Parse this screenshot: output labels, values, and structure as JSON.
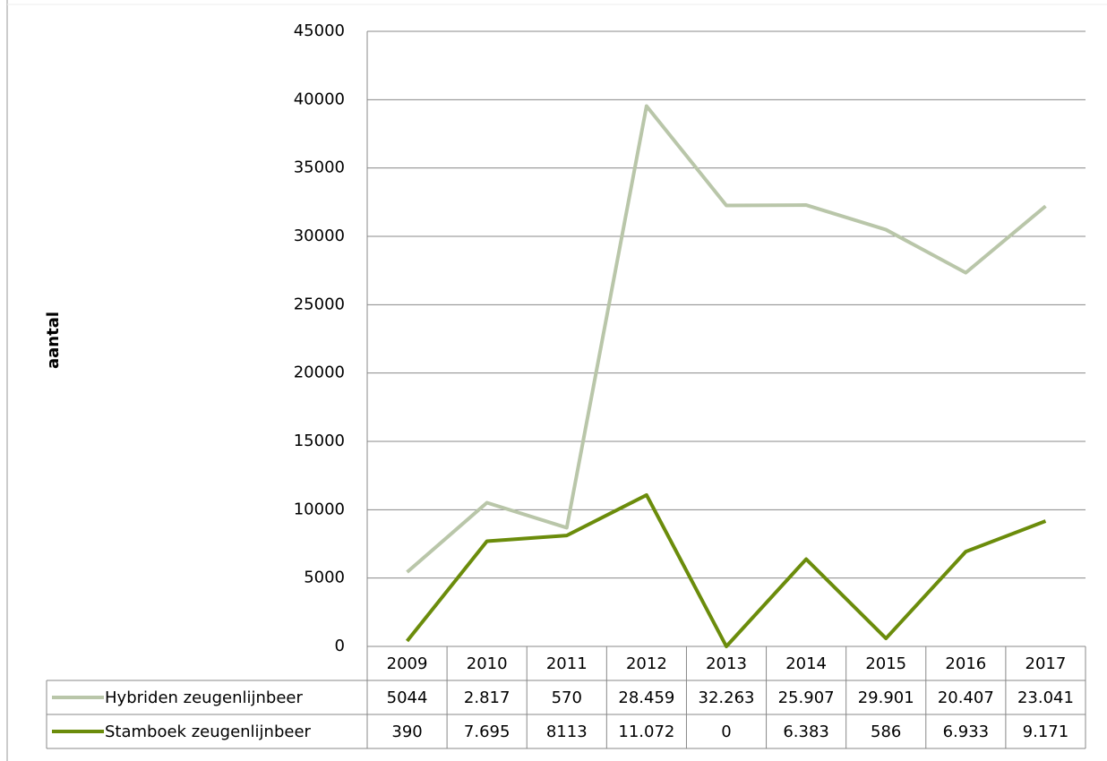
{
  "chart_data": {
    "type": "line",
    "stacked": true,
    "y_label": "aantal",
    "categories": [
      "2009",
      "2010",
      "2011",
      "2012",
      "2013",
      "2014",
      "2015",
      "2016",
      "2017"
    ],
    "series": [
      {
        "name": "Hybriden zeugenlijnbeer",
        "color": "#b9c6a9",
        "values": [
          5044,
          2817,
          570,
          28459,
          32263,
          25907,
          29901,
          20407,
          23041
        ],
        "value_labels": [
          "5044",
          "2.817",
          "570",
          "28.459",
          "32.263",
          "25.907",
          "29.901",
          "20.407",
          "23.041"
        ]
      },
      {
        "name": "Stamboek zeugenlijnbeer",
        "color": "#6b8c0b",
        "values": [
          390,
          7695,
          8113,
          11072,
          0,
          6383,
          586,
          6933,
          9171
        ],
        "value_labels": [
          "390",
          "7.695",
          "8113",
          "11.072",
          "0",
          "6.383",
          "586",
          "6.933",
          "9.171"
        ]
      }
    ],
    "ylim": [
      0,
      45000
    ],
    "yticks": [
      0,
      5000,
      10000,
      15000,
      20000,
      25000,
      30000,
      35000,
      40000,
      45000
    ],
    "grid": true,
    "data_table": true
  }
}
